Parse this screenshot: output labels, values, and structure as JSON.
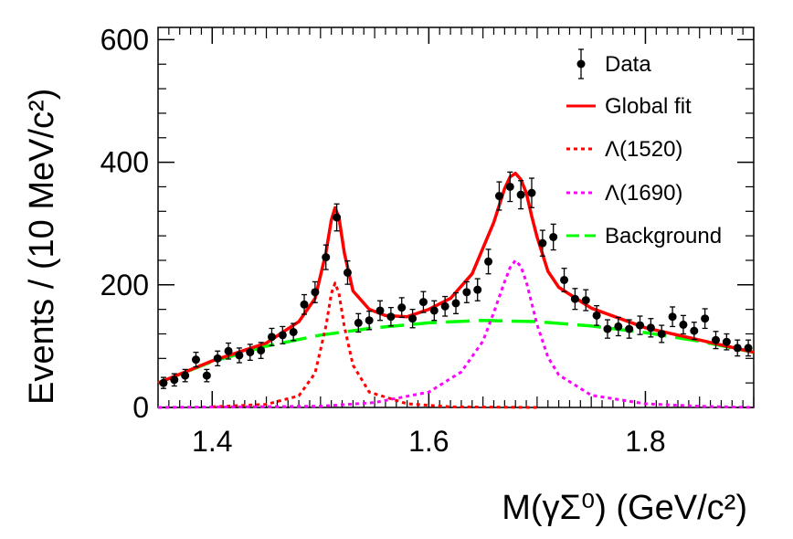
{
  "chart_data": {
    "type": "scatter",
    "xlabel": "M(γΣ⁰) (GeV/c²)",
    "ylabel": "Events / (10 MeV/c²)",
    "xlim": [
      1.35,
      1.9
    ],
    "ylim": [
      0,
      620
    ],
    "x_ticks": [
      1.4,
      1.6,
      1.8
    ],
    "x_tick_labels": [
      "1.4",
      "1.6",
      "1.8"
    ],
    "y_ticks": [
      0,
      200,
      400,
      600
    ],
    "y_tick_labels": [
      "0",
      "200",
      "400",
      "600"
    ],
    "legend": {
      "position": "top-right",
      "entries": [
        {
          "key": "data",
          "label": "Data",
          "style": "points"
        },
        {
          "key": "global",
          "label": "Global fit",
          "style": "solid",
          "color": "#ff0000"
        },
        {
          "key": "l1520",
          "label": "Λ(1520)",
          "style": "dotted",
          "color": "#ff0000"
        },
        {
          "key": "l1690",
          "label": "Λ(1690)",
          "style": "dotted",
          "color": "#ff00ff"
        },
        {
          "key": "bkg",
          "label": "Background",
          "style": "dashed",
          "color": "#00ff00"
        }
      ]
    },
    "data": {
      "x": [
        1.355,
        1.365,
        1.375,
        1.385,
        1.395,
        1.405,
        1.415,
        1.425,
        1.435,
        1.445,
        1.455,
        1.465,
        1.475,
        1.485,
        1.495,
        1.505,
        1.515,
        1.525,
        1.535,
        1.545,
        1.555,
        1.565,
        1.575,
        1.585,
        1.595,
        1.605,
        1.615,
        1.625,
        1.635,
        1.645,
        1.655,
        1.665,
        1.675,
        1.685,
        1.695,
        1.705,
        1.715,
        1.725,
        1.735,
        1.745,
        1.755,
        1.765,
        1.775,
        1.785,
        1.795,
        1.805,
        1.815,
        1.825,
        1.835,
        1.845,
        1.855,
        1.865,
        1.875,
        1.885,
        1.895
      ],
      "y": [
        40,
        45,
        52,
        78,
        52,
        80,
        92,
        85,
        90,
        93,
        115,
        118,
        123,
        168,
        188,
        245,
        310,
        220,
        138,
        142,
        158,
        148,
        163,
        145,
        172,
        158,
        165,
        170,
        188,
        192,
        238,
        345,
        360,
        347,
        350,
        268,
        278,
        208,
        177,
        175,
        150,
        128,
        132,
        128,
        134,
        130,
        120,
        148,
        135,
        125,
        145,
        110,
        107,
        97,
        97
      ],
      "err": [
        9,
        10,
        10,
        12,
        10,
        12,
        13,
        12,
        13,
        13,
        14,
        14,
        14,
        16,
        17,
        20,
        22,
        19,
        15,
        15,
        16,
        15,
        16,
        15,
        17,
        16,
        16,
        17,
        17,
        18,
        20,
        23,
        24,
        23,
        24,
        21,
        21,
        19,
        17,
        17,
        16,
        15,
        15,
        15,
        15,
        15,
        14,
        16,
        15,
        14,
        16,
        14,
        13,
        13,
        13
      ]
    },
    "curves": {
      "bkg": {
        "x": [
          1.35,
          1.4,
          1.45,
          1.5,
          1.55,
          1.6,
          1.65,
          1.7,
          1.75,
          1.8,
          1.85,
          1.9
        ],
        "y": [
          40,
          75,
          100,
          118,
          130,
          138,
          142,
          140,
          133,
          122,
          108,
          90
        ]
      },
      "l1520": {
        "x": [
          1.4,
          1.45,
          1.48,
          1.495,
          1.505,
          1.51,
          1.5135,
          1.517,
          1.522,
          1.53,
          1.545,
          1.58,
          1.62,
          1.7
        ],
        "y": [
          1,
          5,
          19,
          56,
          132,
          186,
          203,
          186,
          132,
          69,
          25,
          6,
          1,
          0
        ]
      },
      "l1690": {
        "x": [
          1.35,
          1.5,
          1.55,
          1.6,
          1.63,
          1.65,
          1.66,
          1.67,
          1.675,
          1.68,
          1.685,
          1.69,
          1.695,
          1.7,
          1.71,
          1.72,
          1.75,
          1.8,
          1.85,
          1.9
        ],
        "y": [
          0,
          2,
          8,
          25,
          58,
          108,
          155,
          205,
          228,
          240,
          230,
          205,
          170,
          135,
          82,
          53,
          20,
          6,
          2,
          0
        ]
      },
      "global": {
        "x": [
          1.35,
          1.4,
          1.45,
          1.48,
          1.495,
          1.505,
          1.51,
          1.5135,
          1.517,
          1.522,
          1.53,
          1.545,
          1.56,
          1.58,
          1.6,
          1.62,
          1.64,
          1.66,
          1.67,
          1.675,
          1.68,
          1.685,
          1.69,
          1.695,
          1.7,
          1.71,
          1.72,
          1.75,
          1.8,
          1.85,
          1.9
        ],
        "y": [
          40,
          76,
          105,
          140,
          178,
          252,
          306,
          326,
          310,
          252,
          190,
          160,
          150,
          148,
          160,
          178,
          218,
          302,
          357,
          376,
          382,
          372,
          350,
          312,
          278,
          222,
          196,
          162,
          130,
          110,
          90
        ]
      }
    },
    "colors": {
      "global": "#ff0000",
      "l1520": "#ff0000",
      "l1690": "#ff00ff",
      "bkg": "#00ff00",
      "data": "#000000"
    }
  }
}
